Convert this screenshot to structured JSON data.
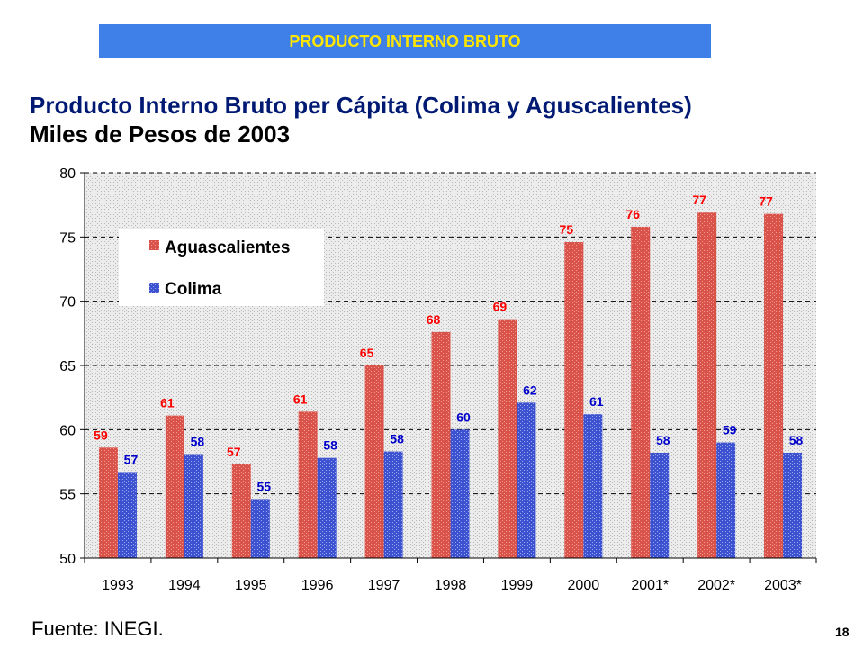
{
  "header": {
    "banner": "PRODUCTO INTERNO BRUTO"
  },
  "chart_title": {
    "line1": "Producto Interno Bruto per Cápita (Colima y Aguscalientes)",
    "line2": "Miles de Pesos de 2003"
  },
  "footer": {
    "source": "Fuente: INEGI.",
    "page_number": "18"
  },
  "colors": {
    "aguascalientes": "#d9534a",
    "colima": "#4458d6",
    "banner_bg": "#3f7fe8",
    "banner_text": "#ffe600",
    "label_red": "#ff0000",
    "label_blue": "#0000cc"
  },
  "chart_data": {
    "type": "bar",
    "categories": [
      "1993",
      "1994",
      "1995",
      "1996",
      "1997",
      "1998",
      "1999",
      "2000",
      "2001*",
      "2002*",
      "2003*"
    ],
    "series": [
      {
        "name": "Aguascalientes",
        "values": [
          58.6,
          61.1,
          57.3,
          61.4,
          65.0,
          67.6,
          68.6,
          74.6,
          75.8,
          76.9,
          76.8
        ],
        "labels": [
          "59",
          "61",
          "57",
          "61",
          "65",
          "68",
          "69",
          "75",
          "76",
          "77",
          "77"
        ]
      },
      {
        "name": "Colima",
        "values": [
          56.7,
          58.1,
          54.6,
          57.8,
          58.3,
          60.0,
          62.1,
          61.2,
          58.2,
          59.0,
          58.2
        ],
        "labels": [
          "57",
          "58",
          "55",
          "58",
          "58",
          "60",
          "62",
          "61",
          "58",
          "59",
          "58"
        ]
      }
    ],
    "ylim": [
      50,
      80
    ],
    "yticks": [
      "50",
      "55",
      "60",
      "65",
      "70",
      "75",
      "80"
    ],
    "grid": true,
    "legend": "top-left"
  }
}
